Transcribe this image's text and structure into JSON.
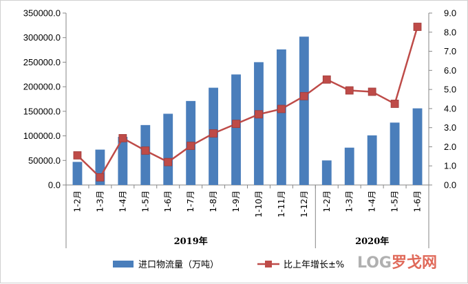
{
  "chart_data": {
    "type": "bar",
    "categories": [
      "1-2月",
      "1-3月",
      "1-4月",
      "1-5月",
      "1-6月",
      "1-7月",
      "1-8月",
      "1-9月",
      "1-10月",
      "1-11月",
      "1-12月",
      "1-2月",
      "1-3月",
      "1-4月",
      "1-5月",
      "1-6月"
    ],
    "groups": [
      {
        "label": "2019年",
        "start": 0,
        "count": 11
      },
      {
        "label": "2020年",
        "start": 11,
        "count": 5
      }
    ],
    "series": [
      {
        "name": "进口物流量（万吨）",
        "type": "bar",
        "axis": "left",
        "color": "#4a7ebb",
        "values": [
          47000,
          72000,
          98000,
          122000,
          145000,
          171000,
          198000,
          225000,
          250000,
          276000,
          302000,
          50000,
          76000,
          101000,
          127000,
          156000
        ]
      },
      {
        "name": "比上年增长±%",
        "type": "line",
        "axis": "right",
        "color": "#be4b48",
        "values": [
          1.55,
          0.4,
          2.45,
          1.8,
          1.2,
          2.05,
          2.7,
          3.2,
          3.7,
          3.98,
          4.65,
          5.52,
          4.95,
          4.88,
          4.25,
          8.28
        ]
      }
    ],
    "y_left": {
      "min": 0,
      "max": 350000,
      "step": 50000,
      "tick_labels": [
        "0.0",
        "50000.0",
        "100000.0",
        "150000.0",
        "200000.0",
        "250000.0",
        "300000.0",
        "350000.0"
      ]
    },
    "y_right": {
      "min": 0,
      "max": 9,
      "step": 1,
      "tick_labels": [
        "0.0",
        "1.0",
        "2.0",
        "3.0",
        "4.0",
        "5.0",
        "6.0",
        "7.0",
        "8.0",
        "9.0"
      ]
    },
    "grid": false,
    "legend_position": "bottom"
  },
  "watermark": {
    "text": "LOG罗戈网"
  }
}
